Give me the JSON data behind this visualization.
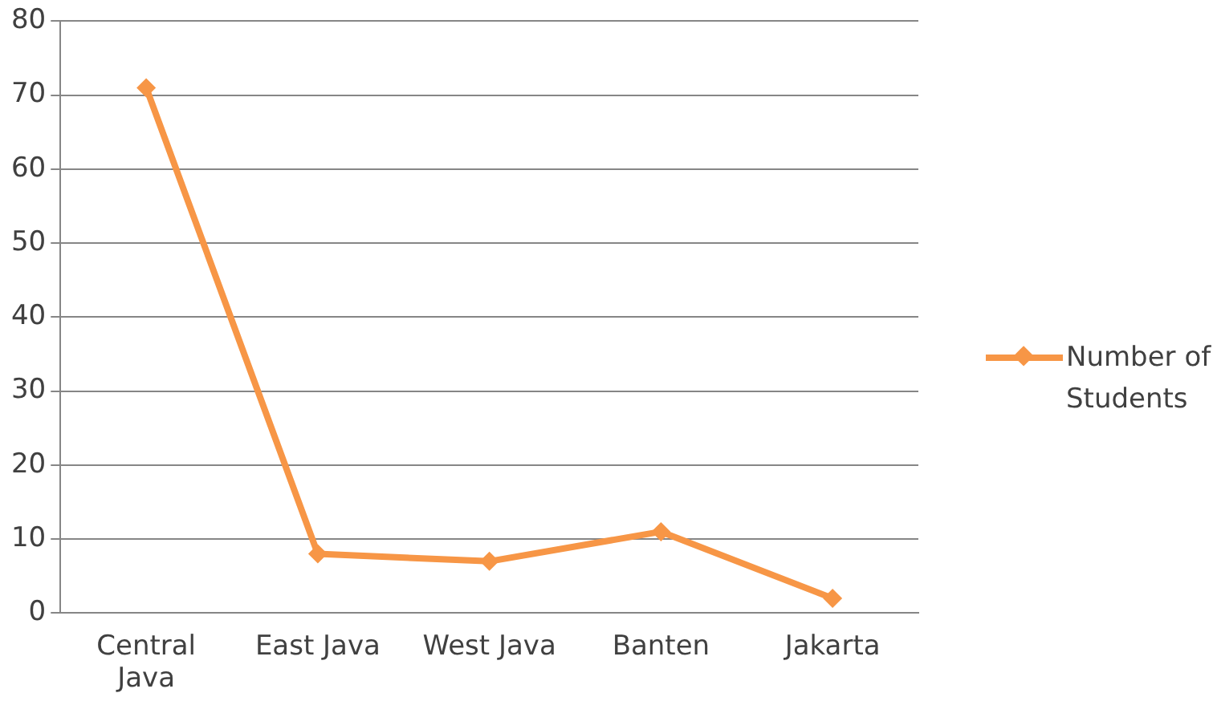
{
  "chart_data": {
    "type": "line",
    "categories": [
      "Central Java",
      "East Java",
      "West Java",
      "Banten",
      "Jakarta"
    ],
    "series": [
      {
        "name": "Number of Students",
        "color": "#f79646",
        "values": [
          71,
          8,
          7,
          11,
          2
        ]
      }
    ],
    "ylim": [
      0,
      80
    ],
    "yticks": [
      0,
      10,
      20,
      30,
      40,
      50,
      60,
      70,
      80
    ],
    "grid": "y",
    "legend": "right",
    "marker": "diamond",
    "line_style": "solid"
  }
}
